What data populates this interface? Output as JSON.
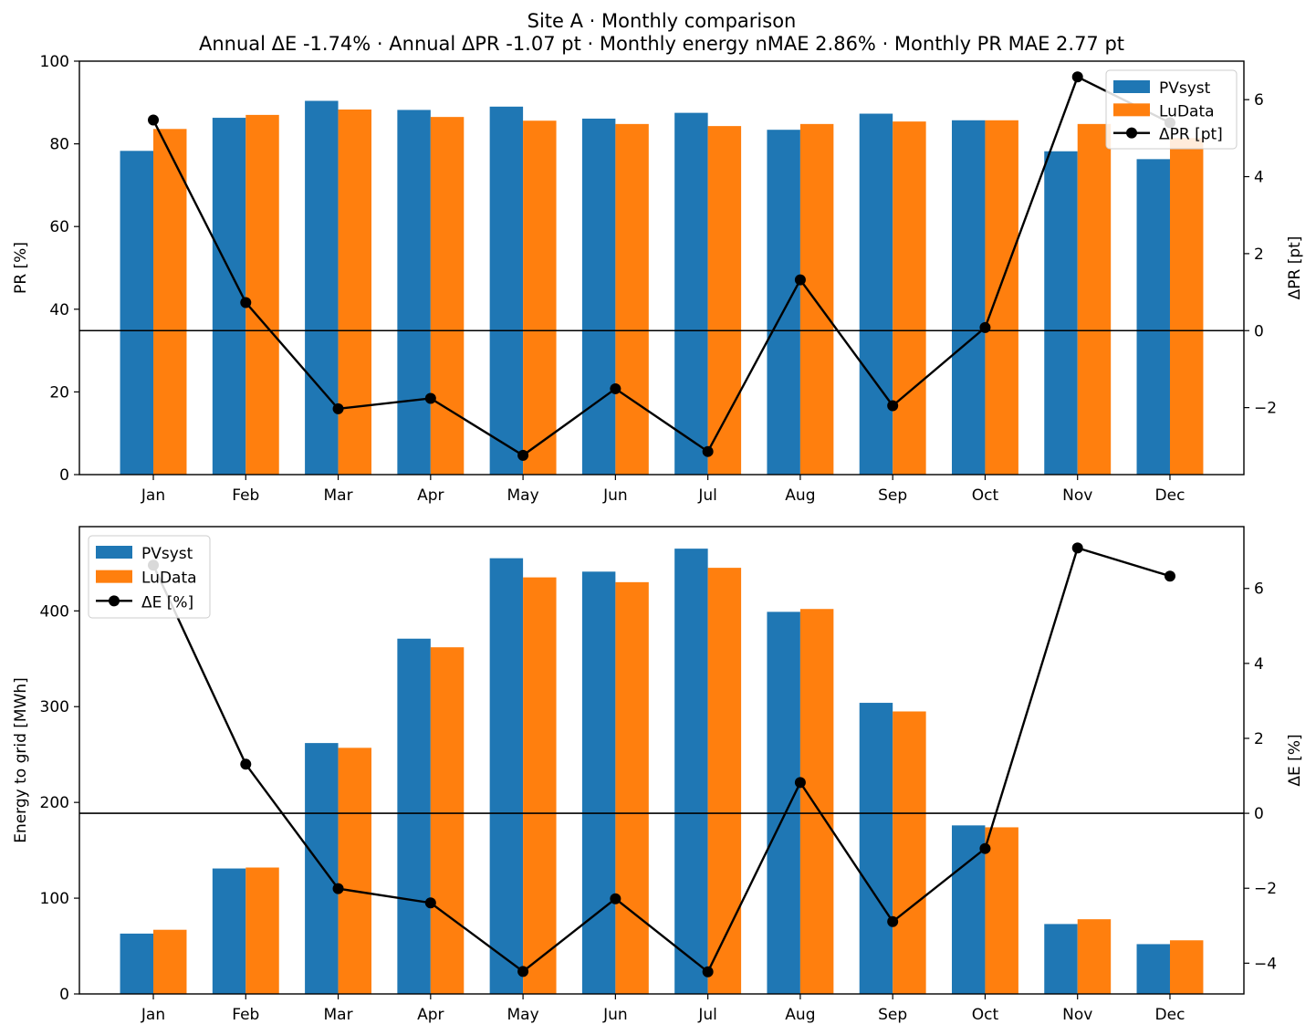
{
  "figure": {
    "title_line1": "Site A · Monthly comparison",
    "title_line2": "Annual ΔE -1.74% · Annual ΔPR -1.07 pt · Monthly energy nMAE 2.86% · Monthly PR MAE 2.77 pt"
  },
  "colors": {
    "pvsyst": "#1f77b4",
    "ludata": "#ff7f0e",
    "delta": "#000000"
  },
  "chart_data": [
    {
      "type": "bar",
      "categories": [
        "Jan",
        "Feb",
        "Mar",
        "Apr",
        "May",
        "Jun",
        "Jul",
        "Aug",
        "Sep",
        "Oct",
        "Nov",
        "Dec"
      ],
      "series": [
        {
          "name": "PVsyst",
          "values": [
            78.3,
            86.3,
            90.4,
            88.2,
            89.0,
            86.1,
            87.5,
            83.4,
            87.3,
            85.7,
            78.2,
            76.3
          ]
        },
        {
          "name": "LuData",
          "values": [
            83.6,
            87.0,
            88.3,
            86.5,
            85.6,
            84.8,
            84.3,
            84.8,
            85.4,
            85.7,
            84.8,
            81.4
          ]
        }
      ],
      "line_series": {
        "name": "ΔPR [pt]",
        "values": [
          5.47,
          0.73,
          -2.03,
          -1.76,
          -3.24,
          -1.51,
          -3.14,
          1.32,
          -1.95,
          0.08,
          6.59,
          5.4
        ]
      },
      "ylabel": "PR [%]",
      "ylabel_right": "ΔPR [pt]",
      "ylim": [
        0,
        100
      ],
      "yticks": [
        "0",
        "20",
        "40",
        "60",
        "80",
        "100"
      ],
      "ylim_right": [
        -3.74,
        7.0
      ],
      "yticks_right": [
        "−2",
        "0",
        "2",
        "4",
        "6"
      ],
      "legend_position": "top-right",
      "grid": false
    },
    {
      "type": "bar",
      "categories": [
        "Jan",
        "Feb",
        "Mar",
        "Apr",
        "May",
        "Jun",
        "Jul",
        "Aug",
        "Sep",
        "Oct",
        "Nov",
        "Dec"
      ],
      "series": [
        {
          "name": "PVsyst",
          "values": [
            63,
            131,
            262,
            371,
            455,
            441,
            465,
            399,
            304,
            176,
            73,
            52
          ]
        },
        {
          "name": "LuData",
          "values": [
            67,
            132,
            257,
            362,
            435,
            430,
            445,
            402,
            295,
            174,
            78,
            56
          ]
        }
      ],
      "line_series": {
        "name": "ΔE [%]",
        "values": [
          6.62,
          1.31,
          -2.01,
          -2.39,
          -4.22,
          -2.28,
          -4.23,
          0.82,
          -2.89,
          -0.94,
          7.08,
          6.33
        ]
      },
      "ylabel": "Energy to grid [MWh]",
      "ylabel_right": "ΔE [%]",
      "ylim": [
        0,
        488
      ],
      "yticks": [
        "0",
        "100",
        "200",
        "300",
        "400"
      ],
      "ylim_right": [
        -4.82,
        7.65
      ],
      "yticks_right": [
        "−4",
        "−2",
        "0",
        "2",
        "4",
        "6"
      ],
      "legend_position": "top-left",
      "grid": false
    }
  ]
}
